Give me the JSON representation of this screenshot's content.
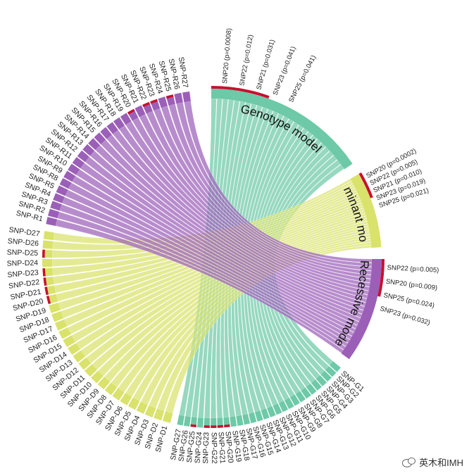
{
  "groups": [
    {
      "id": "genotype",
      "label": "Genotype model",
      "color": "#6dc9a8",
      "pvalues": [
        "SNP20 (p=0.0008)",
        "SNP22 (p=0.012)",
        "SNP21 (p=0.031)",
        "SNP23 (p=0.041)",
        "SNP25 (p=0.041)"
      ]
    },
    {
      "id": "dominant",
      "label": "Dominant model",
      "color": "#d9e26a",
      "pvalues": [
        "SNP20 (p=0.0002)",
        "SNP22 (p=0.005)",
        "SNP21 (p=0.010)",
        "SNP23 (p=0.019)",
        "SNP25 (p=0.021)"
      ]
    },
    {
      "id": "recessive",
      "label": "Recessive model",
      "color": "#9b5fb8",
      "pvalues": [
        "SNP22 (p=0.005)",
        "SNP20 (p=0.009)",
        "SNP25 (p=0.024)",
        "SNP23 (p=0.032)"
      ]
    }
  ],
  "snp_labels": {
    "G": [
      "SNP-G1",
      "SNP-G2",
      "SNP-G3",
      "SNP-G4",
      "SNP-G5",
      "SNP-G6",
      "SNP-G7",
      "SNP-G8",
      "SNP-G9",
      "SNP-G10",
      "SNP-G11",
      "SNP-G12",
      "SNP-G13",
      "SNP-G14",
      "SNP-G15",
      "SNP-G16",
      "SNP-G17",
      "SNP-G18",
      "SNP-G19",
      "SNP-G20",
      "SNP-G21",
      "SNP-G22",
      "SNP-G23",
      "SNP-G24",
      "SNP-G25",
      "SNP-G26",
      "SNP-G27"
    ],
    "D": [
      "SNP-D1",
      "SNP-D2",
      "SNP-D3",
      "SNP-D4",
      "SNP-D5",
      "SNP-D6",
      "SNP-D7",
      "SNP-D8",
      "SNP-D9",
      "SNP-D10",
      "SNP-D11",
      "SNP-D12",
      "SNP-D13",
      "SNP-D14",
      "SNP-D15",
      "SNP-D16",
      "SNP-D17",
      "SNP-D18",
      "SNP-D19",
      "SNP-D20",
      "SNP-D21",
      "SNP-D22",
      "SNP-D23",
      "SNP-D24",
      "SNP-D25",
      "SNP-D26",
      "SNP-D27"
    ],
    "R": [
      "SNP-R1",
      "SNP-R2",
      "SNP-R3",
      "SNP-R4",
      "SNP-R5",
      "SNP-R8",
      "SNP-R9",
      "SNP-R10",
      "SNP-R11",
      "SNP-R12",
      "SNP-R13",
      "SNP-R14",
      "SNP-R15",
      "SNP-R16",
      "SNP-R17",
      "SNP-R18",
      "SNP-R19",
      "SNP-R20",
      "SNP-R21",
      "SNP-R22",
      "SNP-R23",
      "SNP-R24",
      "SNP-R25",
      "SNP-R26",
      "SNP-R27"
    ]
  },
  "colors": {
    "genotype": "#6dc9a8",
    "dominant": "#d9e26a",
    "recessive": "#9b5fb8",
    "highlight": "#c8102e"
  },
  "watermark": {
    "text": "英木和IMH",
    "icon": "wechat-icon"
  }
}
